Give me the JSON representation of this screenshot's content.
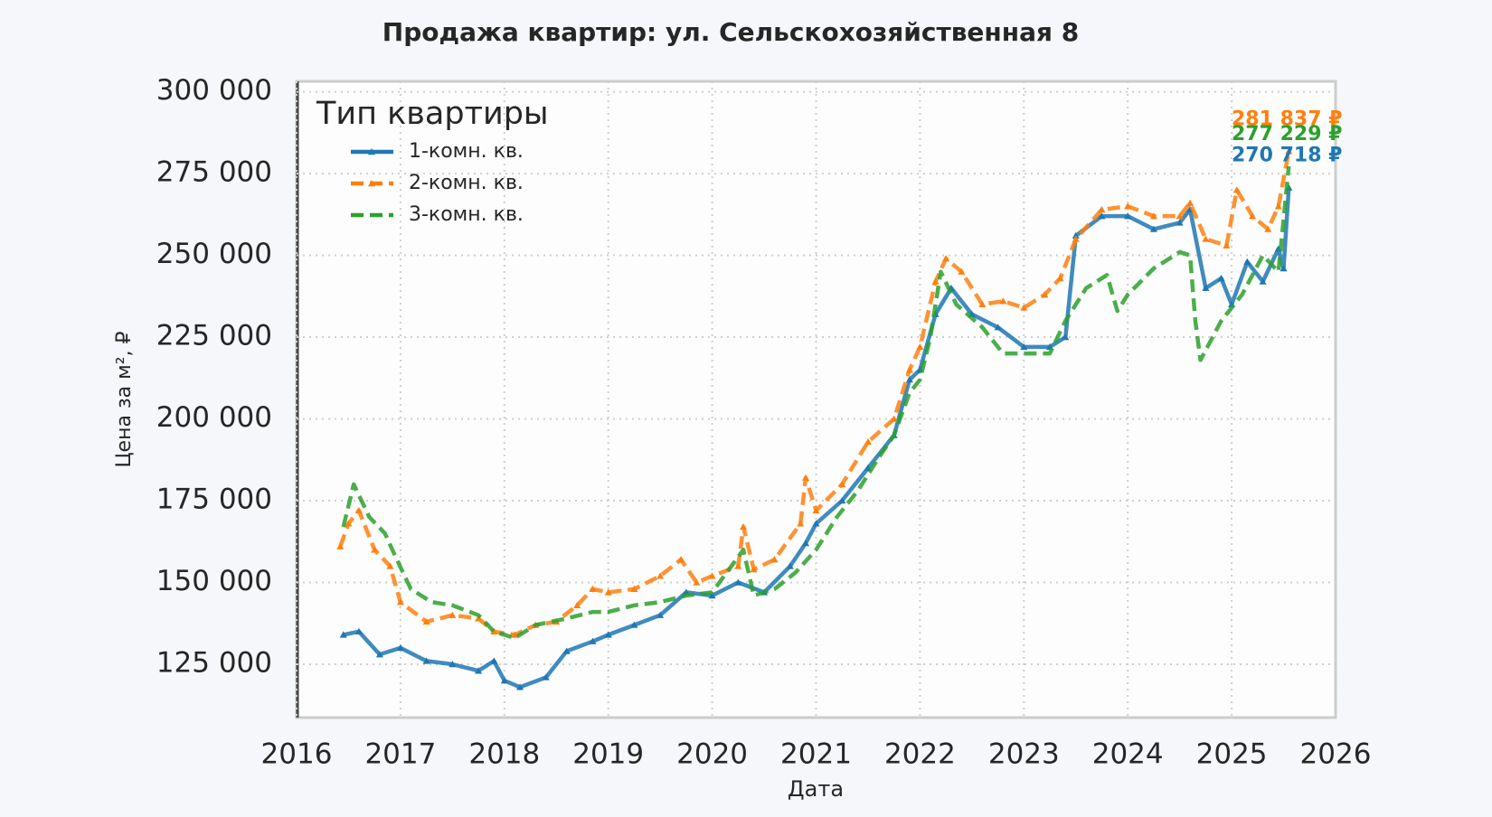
{
  "chart_data": {
    "type": "line",
    "title": "Продажа квартир: ул. Сельскохозяйственная 8",
    "x_label": "Дата",
    "y_label": "Цена за м², ₽",
    "legend_title": "Тип квартиры",
    "legend_position": "upper left",
    "grid": true,
    "xlim": [
      2016,
      2026
    ],
    "xticks": [
      2016,
      2017,
      2018,
      2019,
      2020,
      2021,
      2022,
      2023,
      2024,
      2025,
      2026
    ],
    "ylim": [
      108700,
      303200
    ],
    "yticks": [
      {
        "value": 125000,
        "label": "125 000"
      },
      {
        "value": 150000,
        "label": "150 000"
      },
      {
        "value": 175000,
        "label": "175 000"
      },
      {
        "value": 200000,
        "label": "200 000"
      },
      {
        "value": 225000,
        "label": "225 000"
      },
      {
        "value": 250000,
        "label": "250 000"
      },
      {
        "value": 275000,
        "label": "275 000"
      },
      {
        "value": 300000,
        "label": "300 000"
      }
    ],
    "series": [
      {
        "name": "1-комн. кв.",
        "color": "#1f77b4",
        "dash": "solid",
        "marker": true,
        "end_label": "270 718 ₽",
        "x": [
          2016.45,
          2016.6,
          2016.8,
          2017.0,
          2017.25,
          2017.5,
          2017.75,
          2017.9,
          2018.0,
          2018.15,
          2018.4,
          2018.6,
          2018.85,
          2019.0,
          2019.25,
          2019.5,
          2019.75,
          2020.0,
          2020.25,
          2020.5,
          2020.75,
          2020.9,
          2021.0,
          2021.25,
          2021.5,
          2021.75,
          2021.9,
          2022.0,
          2022.15,
          2022.3,
          2022.5,
          2022.75,
          2023.0,
          2023.25,
          2023.4,
          2023.5,
          2023.75,
          2024.0,
          2024.25,
          2024.5,
          2024.6,
          2024.75,
          2024.9,
          2025.0,
          2025.15,
          2025.3,
          2025.45,
          2025.5,
          2025.55
        ],
        "values": [
          134000,
          135000,
          128000,
          130000,
          126000,
          125000,
          123000,
          126000,
          120000,
          118000,
          121000,
          129000,
          132000,
          134000,
          137000,
          140000,
          147000,
          146000,
          150000,
          147000,
          155000,
          162000,
          168000,
          175000,
          185000,
          195000,
          212000,
          215000,
          232000,
          240000,
          232000,
          228000,
          222000,
          222000,
          225000,
          256000,
          262000,
          262000,
          258000,
          260000,
          264000,
          240000,
          243000,
          235000,
          248000,
          242000,
          252000,
          246000,
          270718
        ]
      },
      {
        "name": "2-комн. кв.",
        "color": "#ff7f0e",
        "dash": "dashed",
        "marker": true,
        "end_label": "281 837 ₽",
        "x": [
          2016.42,
          2016.5,
          2016.6,
          2016.75,
          2016.9,
          2017.0,
          2017.25,
          2017.5,
          2017.75,
          2017.9,
          2018.1,
          2018.3,
          2018.5,
          2018.7,
          2018.85,
          2019.0,
          2019.25,
          2019.5,
          2019.7,
          2019.85,
          2020.0,
          2020.25,
          2020.3,
          2020.4,
          2020.6,
          2020.85,
          2020.9,
          2021.0,
          2021.25,
          2021.5,
          2021.75,
          2021.9,
          2022.0,
          2022.15,
          2022.25,
          2022.4,
          2022.6,
          2022.8,
          2023.0,
          2023.2,
          2023.35,
          2023.5,
          2023.75,
          2024.0,
          2024.25,
          2024.5,
          2024.6,
          2024.75,
          2024.95,
          2025.05,
          2025.2,
          2025.35,
          2025.45,
          2025.55
        ],
        "values": [
          161000,
          168000,
          172000,
          160000,
          155000,
          144000,
          138000,
          140000,
          139000,
          135000,
          134000,
          137000,
          138000,
          143000,
          148000,
          147000,
          148000,
          152000,
          157000,
          150000,
          152000,
          155000,
          167000,
          154000,
          157000,
          168000,
          182000,
          172000,
          180000,
          193000,
          200000,
          215000,
          222000,
          242000,
          249000,
          245000,
          235000,
          236000,
          234000,
          238000,
          243000,
          255000,
          264000,
          265000,
          262000,
          262000,
          266000,
          255000,
          253000,
          270000,
          262000,
          258000,
          265000,
          281837
        ]
      },
      {
        "name": "3-комн. кв.",
        "color": "#2ca02c",
        "dash": "dashed",
        "marker": false,
        "end_label": "277 229 ₽",
        "x": [
          2016.45,
          2016.55,
          2016.7,
          2016.85,
          2016.95,
          2017.1,
          2017.3,
          2017.5,
          2017.75,
          2017.9,
          2018.1,
          2018.3,
          2018.6,
          2018.85,
          2019.0,
          2019.25,
          2019.5,
          2019.75,
          2020.0,
          2020.3,
          2020.4,
          2020.6,
          2020.8,
          2021.0,
          2021.2,
          2021.4,
          2021.6,
          2021.75,
          2021.9,
          2022.0,
          2022.1,
          2022.2,
          2022.35,
          2022.6,
          2022.8,
          2023.0,
          2023.25,
          2023.4,
          2023.6,
          2023.8,
          2023.9,
          2024.0,
          2024.25,
          2024.5,
          2024.6,
          2024.65,
          2024.7,
          2024.9,
          2025.1,
          2025.3,
          2025.45,
          2025.55
        ],
        "values": [
          167000,
          180000,
          170000,
          165000,
          158000,
          148000,
          144000,
          143000,
          140000,
          135000,
          133000,
          137000,
          139000,
          141000,
          141000,
          143000,
          144000,
          146000,
          147000,
          160000,
          146000,
          148000,
          153000,
          160000,
          170000,
          178000,
          188000,
          195000,
          208000,
          212000,
          225000,
          245000,
          235000,
          228000,
          220000,
          220000,
          220000,
          230000,
          240000,
          244000,
          233000,
          238000,
          246000,
          251000,
          250000,
          230000,
          218000,
          230000,
          238000,
          250000,
          245000,
          277229
        ]
      }
    ]
  }
}
